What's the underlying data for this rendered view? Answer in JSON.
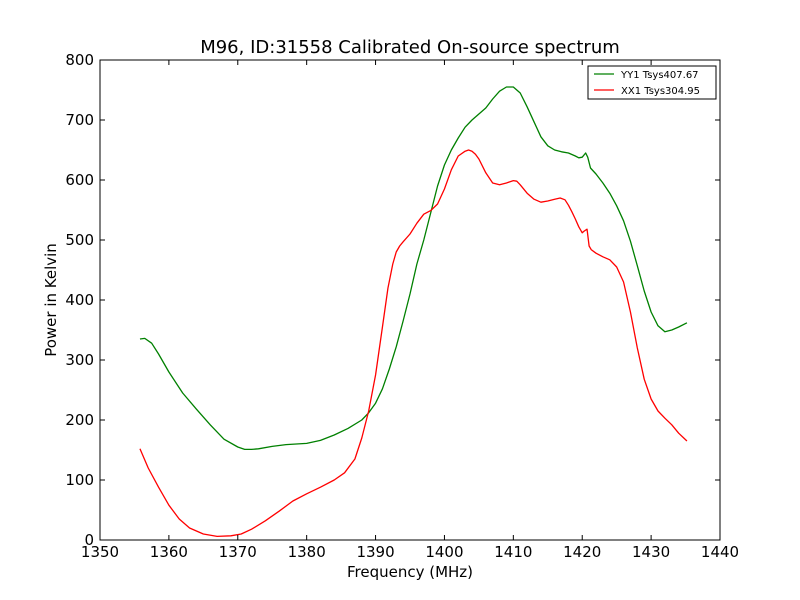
{
  "chart_data": {
    "type": "line",
    "title": "M96, ID:31558 Calibrated On-source spectrum",
    "xlabel": "Frequency (MHz)",
    "ylabel": "Power in Kelvin",
    "xlim": [
      1350,
      1440
    ],
    "ylim": [
      0,
      800
    ],
    "xticks": [
      1350,
      1360,
      1370,
      1380,
      1390,
      1400,
      1410,
      1420,
      1430,
      1440
    ],
    "yticks": [
      0,
      100,
      200,
      300,
      400,
      500,
      600,
      700,
      800
    ],
    "grid": false,
    "legend_position": "top-right",
    "series": [
      {
        "name": "YY1 Tsys407.67",
        "color": "#008000",
        "x": [
          1355.8,
          1356.5,
          1357.5,
          1358.5,
          1360,
          1362,
          1364,
          1366,
          1368,
          1370,
          1371,
          1372,
          1373,
          1375,
          1377,
          1380,
          1382,
          1384,
          1386,
          1388,
          1389,
          1390,
          1391,
          1392,
          1393,
          1394,
          1395,
          1396,
          1397,
          1398,
          1399,
          1400,
          1401,
          1402,
          1403,
          1404,
          1405,
          1406,
          1407,
          1408,
          1409,
          1410,
          1411,
          1412,
          1413,
          1414,
          1415,
          1416,
          1417,
          1418,
          1419,
          1419.5,
          1420,
          1420.5,
          1420.8,
          1421.2,
          1422,
          1423,
          1424,
          1425,
          1426,
          1427,
          1428,
          1429,
          1430,
          1431,
          1432,
          1433,
          1434,
          1435.2
        ],
        "y": [
          335,
          336,
          328,
          310,
          280,
          245,
          218,
          192,
          168,
          155,
          151,
          151,
          152,
          156,
          159,
          161,
          166,
          175,
          186,
          200,
          212,
          228,
          252,
          285,
          322,
          365,
          410,
          460,
          500,
          545,
          590,
          625,
          650,
          670,
          688,
          700,
          710,
          720,
          735,
          748,
          755,
          755,
          745,
          722,
          697,
          672,
          657,
          650,
          647,
          645,
          640,
          637,
          638,
          645,
          638,
          620,
          610,
          595,
          578,
          557,
          532,
          498,
          457,
          415,
          380,
          357,
          347,
          350,
          355,
          362
        ]
      },
      {
        "name": "XX1 Tsys304.95",
        "color": "#ff0000",
        "x": [
          1355.8,
          1357,
          1358.5,
          1360,
          1361.5,
          1363,
          1365,
          1367,
          1369,
          1370.5,
          1372,
          1374,
          1376,
          1378,
          1380,
          1382,
          1384,
          1385.5,
          1387,
          1388,
          1389,
          1390,
          1391,
          1391.8,
          1392.5,
          1393,
          1393.5,
          1394,
          1395,
          1396,
          1397,
          1398,
          1399,
          1400,
          1401,
          1402,
          1403,
          1403.5,
          1404,
          1404.5,
          1405,
          1406,
          1407,
          1408,
          1409,
          1410,
          1410.5,
          1411,
          1412,
          1413,
          1414,
          1415,
          1416,
          1416.8,
          1417.5,
          1418,
          1418.5,
          1419,
          1419.5,
          1420,
          1420.3,
          1420.7,
          1421,
          1421.3,
          1422,
          1423,
          1424,
          1425,
          1426,
          1427,
          1428,
          1429,
          1430,
          1431,
          1432,
          1433,
          1434,
          1435.2
        ],
        "y": [
          152,
          120,
          88,
          58,
          35,
          20,
          10,
          6,
          7,
          10,
          18,
          32,
          48,
          65,
          77,
          88,
          100,
          112,
          135,
          170,
          215,
          275,
          355,
          420,
          460,
          480,
          490,
          497,
          510,
          528,
          543,
          549,
          560,
          585,
          617,
          640,
          648,
          650,
          648,
          643,
          635,
          612,
          595,
          592,
          595,
          599,
          598,
          592,
          578,
          568,
          563,
          565,
          568,
          570,
          567,
          558,
          547,
          535,
          522,
          512,
          515,
          518,
          490,
          484,
          478,
          472,
          467,
          455,
          430,
          380,
          320,
          268,
          235,
          215,
          203,
          192,
          178,
          165
        ]
      }
    ]
  }
}
